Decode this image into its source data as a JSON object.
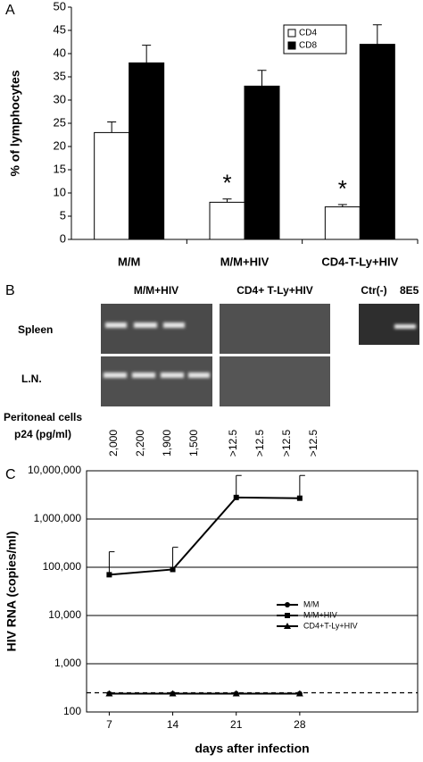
{
  "chart_data": [
    {
      "type": "bar",
      "panel": "A",
      "ylabel": "% of lymphocytes",
      "categories": [
        "M/M",
        "M/M+HIV",
        "CD4-T-Ly+HIV"
      ],
      "series": [
        {
          "name": "CD4",
          "color": "#ffffff",
          "values": [
            23,
            8,
            7
          ],
          "errors": [
            2.3,
            0.7,
            0.5
          ],
          "annotations": [
            null,
            "*",
            "*"
          ]
        },
        {
          "name": "CD8",
          "color": "#000000",
          "values": [
            38,
            33,
            42
          ],
          "errors": [
            3.8,
            3.4,
            4.2
          ]
        }
      ],
      "ylim": [
        0,
        50
      ],
      "yticks": [
        0,
        5,
        10,
        15,
        20,
        25,
        30,
        35,
        40,
        45,
        50
      ],
      "legend": "upper right"
    },
    {
      "type": "line",
      "panel": "C",
      "ylabel": "HIV RNA (copies/ml)",
      "xlabel": "days after infection",
      "x": [
        7,
        14,
        21,
        28
      ],
      "xlim": [
        4.5,
        41
      ],
      "xticks": [
        7,
        14,
        21,
        28
      ],
      "log_y": true,
      "grid": true,
      "legend": "center right",
      "ylim": [
        100,
        10000000
      ],
      "yticks": [
        100,
        {
          "value": 1000,
          "label": "1,000"
        },
        {
          "value": 10000,
          "label": "10,000"
        },
        {
          "value": 100000,
          "label": "100,000"
        },
        {
          "value": 1000000,
          "label": "1,000,000"
        },
        {
          "value": 10000000,
          "label": "10,000,000"
        }
      ],
      "hline": 250,
      "series": [
        {
          "name": "M/M",
          "color": "#000000",
          "marker": "circle",
          "values": [
            240,
            240,
            240,
            240
          ]
        },
        {
          "name": "M/M+HIV",
          "color": "#000000",
          "marker": "square",
          "values": [
            70000,
            90000,
            2800000,
            2700000
          ],
          "errors": [
            140000,
            170000,
            5200000,
            5300000
          ]
        },
        {
          "name": "CD4+T-Ly+HIV",
          "color": "#000000",
          "marker": "triangle",
          "values": [
            240,
            240,
            240,
            240
          ]
        }
      ]
    }
  ],
  "panel_b": {
    "panel": "B",
    "groups": [
      "M/M+HIV",
      "CD4+ T-Ly+HIV",
      "Ctr(-)",
      "8E5"
    ],
    "rows": [
      "Spleen",
      "L.N."
    ],
    "p24_title": [
      "Peritoneal cells",
      "p24 (pg/ml)"
    ],
    "p24": [
      "2,000",
      "2,200",
      "1,900",
      "1,500",
      ">12.5",
      ">12.5",
      ">12.5",
      ">12.5"
    ]
  }
}
